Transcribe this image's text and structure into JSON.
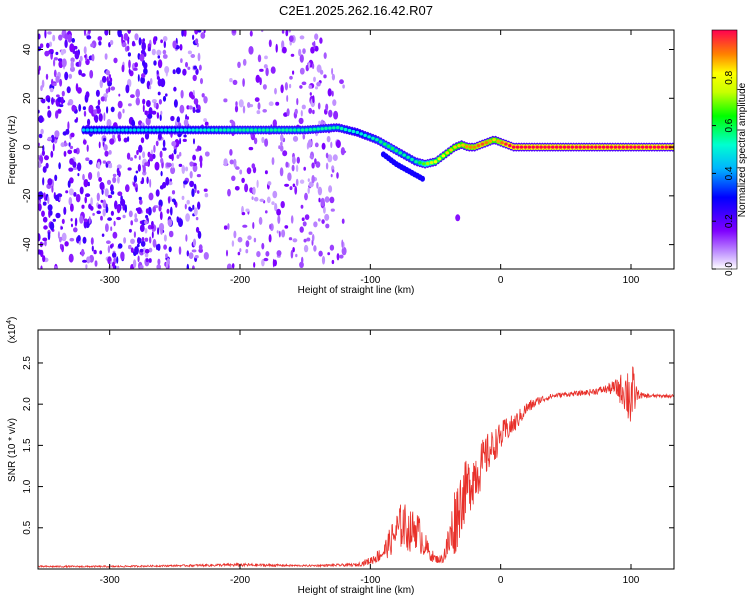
{
  "title": "C2E1.2025.262.16.42.R07",
  "colors": {
    "snr_line": "#e8302a",
    "track_core": "#ff2a00",
    "background": "#ffffff"
  },
  "chart_data": [
    {
      "type": "heatmap",
      "name": "spectrogram",
      "xlabel": "Height of straight line (km)",
      "ylabel": "Frequency (Hz)",
      "xlim": [
        -355,
        133
      ],
      "ylim": [
        -50,
        48
      ],
      "xticks": [
        -300,
        -200,
        -100,
        0,
        100
      ],
      "yticks": [
        -40,
        -20,
        0,
        20,
        40
      ],
      "colorbar": {
        "label": "Normalized spectral amplitude",
        "range": [
          0,
          1
        ],
        "ticks": [
          "0.0",
          "0.2",
          "0.4",
          "0.6",
          "0.8"
        ],
        "tick_values": [
          0.0,
          0.2,
          0.4,
          0.6,
          0.8
        ]
      },
      "noise_region_x": [
        -355,
        -120
      ],
      "gap_x": [
        -225,
        -212
      ],
      "track": {
        "x": [
          -320,
          -250,
          -200,
          -150,
          -125,
          -110,
          -95,
          -85,
          -75,
          -65,
          -58,
          -50,
          -45,
          -40,
          -35,
          -30,
          -25,
          -20,
          -15,
          -10,
          -5,
          0,
          5,
          10,
          50,
          100,
          133
        ],
        "y": [
          7,
          7,
          7,
          7,
          8,
          6,
          3,
          0,
          -3,
          -6,
          -7,
          -6,
          -4,
          -2,
          0,
          1,
          0,
          0,
          1,
          2,
          3,
          2,
          1,
          0,
          0,
          0,
          0
        ],
        "amp": [
          0.45,
          0.5,
          0.55,
          0.55,
          0.55,
          0.5,
          0.55,
          0.6,
          0.55,
          0.55,
          0.7,
          0.8,
          0.8,
          0.85,
          0.85,
          0.85,
          0.9,
          0.9,
          0.95,
          0.9,
          0.85,
          0.9,
          1.0,
          1.0,
          1.0,
          1.0,
          1.0
        ]
      },
      "lower_branch": {
        "x": [
          -90,
          -80,
          -70,
          -60
        ],
        "y": [
          -3,
          -7,
          -10,
          -13
        ]
      },
      "isolated_blob": {
        "x": -33,
        "y": -29
      }
    },
    {
      "type": "line",
      "name": "snr",
      "xlabel": "Height of straight line (km)",
      "ylabel": "SNR (10 * v/v)",
      "scale_label": "(x10",
      "scale_exp": "4",
      "scale_close": ")",
      "xlim": [
        -355,
        133
      ],
      "ylim": [
        0,
        2.9
      ],
      "xticks": [
        -300,
        -200,
        -100,
        0,
        100
      ],
      "yticks": [
        0.5,
        1.0,
        1.5,
        2.0,
        2.5
      ],
      "ytick_labels": [
        "0.5",
        "1.0",
        "1.5",
        "2.0",
        "2.5"
      ],
      "series": [
        {
          "name": "SNR",
          "x": [
            -355,
            -300,
            -250,
            -200,
            -150,
            -110,
            -100,
            -90,
            -80,
            -75,
            -70,
            -65,
            -60,
            -55,
            -50,
            -45,
            -40,
            -35,
            -30,
            -25,
            -20,
            -15,
            -10,
            -5,
            0,
            5,
            10,
            15,
            20,
            30,
            40,
            50,
            60,
            70,
            80,
            88,
            95,
            100,
            105,
            110,
            120,
            133
          ],
          "y": [
            0.03,
            0.03,
            0.04,
            0.05,
            0.04,
            0.05,
            0.1,
            0.2,
            0.45,
            0.55,
            0.45,
            0.5,
            0.35,
            0.2,
            0.12,
            0.12,
            0.3,
            0.6,
            0.85,
            1.0,
            1.15,
            1.25,
            1.4,
            1.5,
            1.6,
            1.7,
            1.75,
            1.85,
            1.95,
            2.05,
            2.1,
            2.12,
            2.13,
            2.15,
            2.18,
            2.2,
            2.17,
            2.1,
            2.12,
            2.1,
            2.1,
            2.1
          ],
          "noise_amp": [
            0.01,
            0.01,
            0.01,
            0.02,
            0.01,
            0.02,
            0.05,
            0.1,
            0.25,
            0.3,
            0.25,
            0.25,
            0.2,
            0.1,
            0.05,
            0.05,
            0.25,
            0.45,
            0.4,
            0.35,
            0.35,
            0.3,
            0.25,
            0.2,
            0.18,
            0.15,
            0.12,
            0.1,
            0.08,
            0.05,
            0.03,
            0.03,
            0.03,
            0.04,
            0.05,
            0.1,
            0.25,
            0.5,
            0.06,
            0.03,
            0.02,
            0.02
          ]
        }
      ]
    }
  ]
}
